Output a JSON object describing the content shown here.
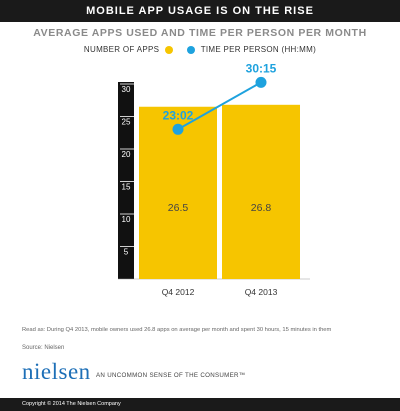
{
  "header": {
    "banner_title": "MOBILE APP USAGE IS ON THE RISE",
    "subtitle": "AVERAGE APPS USED AND TIME PER PERSON PER MONTH"
  },
  "legend": {
    "apps_label": "NUMBER OF APPS",
    "time_label": "TIME PER PERSON (HH:MM)"
  },
  "colors": {
    "bar": "#f6c500",
    "line": "#1ea2de",
    "axis_bg": "#111111"
  },
  "chart_data": {
    "type": "bar",
    "categories": [
      "Q4 2012",
      "Q4 2013"
    ],
    "ylim": [
      0,
      30
    ],
    "yticks": [
      5,
      10,
      15,
      20,
      25,
      30
    ],
    "series": [
      {
        "name": "NUMBER OF APPS",
        "type": "bar",
        "values": [
          26.5,
          26.8
        ],
        "labels": [
          "26.5",
          "26.8"
        ]
      },
      {
        "name": "TIME PER PERSON (HH:MM)",
        "type": "line",
        "values": [
          23.03,
          30.25
        ],
        "labels": [
          "23:02",
          "30:15"
        ]
      }
    ]
  },
  "notes": {
    "read_as": "Read as: During Q4 2013, mobile owners used 26.8 apps on average per month and spent 30 hours, 15 minutes in them",
    "source": "Source: Nielsen"
  },
  "brand": {
    "logo": "nielsen",
    "tagline": "AN UNCOMMON SENSE OF THE CONSUMER™"
  },
  "footer": {
    "copyright": "Copyright © 2014 The Nielsen Company"
  }
}
